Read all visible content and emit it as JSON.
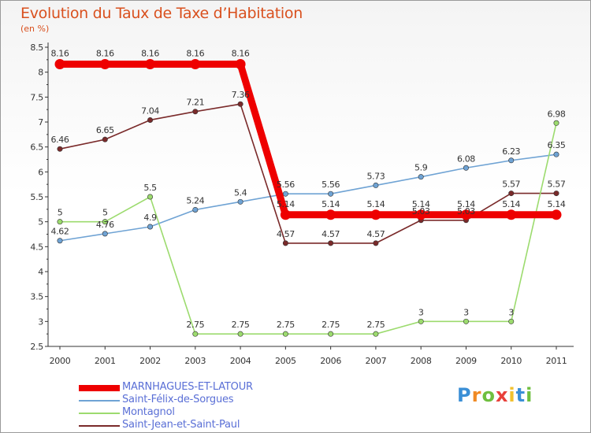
{
  "title": "Evolution du Taux de Taxe d’Habitation",
  "subtitle": "(en %)",
  "logo": {
    "letters": [
      "P",
      "r",
      "o",
      "x",
      "i",
      "t",
      "i"
    ],
    "colors": [
      "#3a8fd6",
      "#f08a24",
      "#6fbf3f",
      "#e8403a",
      "#f2c12e",
      "#3a8fd6",
      "#6fbf3f"
    ]
  },
  "chart_data": {
    "type": "line",
    "x": [
      "2000",
      "2001",
      "2002",
      "2003",
      "2004",
      "2005",
      "2006",
      "2007",
      "2008",
      "2009",
      "2010",
      "2011"
    ],
    "ylim": [
      2.5,
      8.5
    ],
    "yticks": [
      "2.5",
      "3",
      "3.5",
      "4",
      "4.5",
      "5",
      "5.5",
      "6",
      "6.5",
      "7",
      "7.5",
      "8",
      "8.5"
    ],
    "grid": false,
    "legend_position": "bottom-left",
    "series": [
      {
        "name": "MARNHAGUES-ET-LATOUR",
        "color": "#ee0000",
        "values": [
          8.16,
          8.16,
          8.16,
          8.16,
          8.16,
          5.14,
          5.14,
          5.14,
          5.14,
          5.14,
          5.14,
          5.14
        ],
        "labels": [
          "8.16",
          "8.16",
          "8.16",
          "8.16",
          "8.16",
          "5.14",
          "5.14",
          "5.14",
          "5.14",
          "5.14",
          "5.14",
          "5.14"
        ]
      },
      {
        "name": "Saint-Félix-de-Sorgues",
        "color": "#6fa3d4",
        "values": [
          4.62,
          4.76,
          4.9,
          5.24,
          5.4,
          5.56,
          5.56,
          5.73,
          5.9,
          6.08,
          6.23,
          6.35
        ],
        "labels": [
          "4.62",
          "4.76",
          "4.9",
          "5.24",
          "5.4",
          "5.56",
          "5.56",
          "5.73",
          "5.9",
          "6.08",
          "6.23",
          "6.35"
        ]
      },
      {
        "name": "Montagnol",
        "color": "#9cdb6e",
        "values": [
          5,
          5,
          5.5,
          2.75,
          2.75,
          2.75,
          2.75,
          2.75,
          3,
          3,
          3,
          6.98
        ],
        "labels": [
          "5",
          "5",
          "5.5",
          "2.75",
          "2.75",
          "2.75",
          "2.75",
          "2.75",
          "3",
          "3",
          "3",
          "6.98"
        ]
      },
      {
        "name": "Saint-Jean-et-Saint-Paul",
        "color": "#7a2a2a",
        "values": [
          6.46,
          6.65,
          7.04,
          7.21,
          7.36,
          4.57,
          4.57,
          4.57,
          5.03,
          5.03,
          5.57,
          5.57
        ],
        "labels": [
          "6.46",
          "6.65",
          "7.04",
          "7.21",
          "7.36",
          "4.57",
          "4.57",
          "4.57",
          "5.03",
          "5.03",
          "5.57",
          "5.57"
        ]
      }
    ]
  }
}
